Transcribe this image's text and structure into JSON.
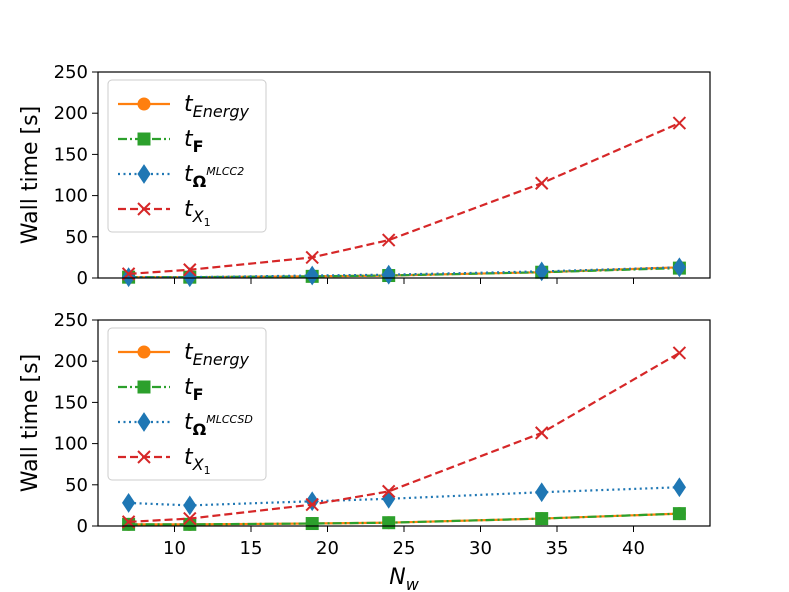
{
  "chart_data": [
    {
      "type": "line",
      "panel": "top",
      "title": "",
      "xlabel": "",
      "ylabel": "Wall time [s]",
      "x": [
        7,
        11,
        19,
        24,
        34,
        43
      ],
      "xlim": [
        5,
        45
      ],
      "ylim": [
        0,
        250
      ],
      "xticks": [
        10,
        15,
        20,
        25,
        30,
        35,
        40
      ],
      "yticks": [
        0,
        50,
        100,
        150,
        200,
        250
      ],
      "show_xtick_labels": false,
      "legend_position": "upper-left",
      "series": [
        {
          "name": "t_Energy",
          "label_base": "t",
          "label_sub": "Energy",
          "label_sup": "",
          "color": "#ff7f0e",
          "dash": "solid",
          "marker": "circle",
          "values": [
            1,
            1,
            2,
            3,
            7,
            13
          ]
        },
        {
          "name": "t_F",
          "label_base": "t",
          "label_sub": "F",
          "label_sup": "",
          "color": "#2ca02c",
          "dash": "dashdot",
          "marker": "square",
          "values": [
            1,
            1,
            2,
            3,
            7,
            12
          ]
        },
        {
          "name": "t_Omega^MLCC2",
          "label_base": "t",
          "label_sub": "Ω",
          "label_sup": "MLCC2",
          "color": "#1f77b4",
          "dash": "dotted",
          "marker": "diamond",
          "values": [
            1,
            1,
            3,
            4,
            8,
            13
          ]
        },
        {
          "name": "t_X1",
          "label_base": "t",
          "label_sub": "X",
          "label_sup": "",
          "label_subsub": "1",
          "color": "#d62728",
          "dash": "dashed",
          "marker": "x",
          "values": [
            5,
            10,
            25,
            46,
            115,
            188
          ]
        }
      ]
    },
    {
      "type": "line",
      "panel": "bottom",
      "title": "",
      "xlabel": "N",
      "xlabel_sub": "w",
      "ylabel": "Wall time [s]",
      "x": [
        7,
        11,
        19,
        24,
        34,
        43
      ],
      "xlim": [
        5,
        45
      ],
      "ylim": [
        0,
        250
      ],
      "xticks": [
        10,
        15,
        20,
        25,
        30,
        35,
        40
      ],
      "yticks": [
        0,
        50,
        100,
        150,
        200,
        250
      ],
      "show_xtick_labels": true,
      "legend_position": "upper-left",
      "series": [
        {
          "name": "t_Energy",
          "label_base": "t",
          "label_sub": "Energy",
          "label_sup": "",
          "color": "#ff7f0e",
          "dash": "solid",
          "marker": "circle",
          "values": [
            2,
            2,
            3,
            4,
            9,
            15
          ]
        },
        {
          "name": "t_F",
          "label_base": "t",
          "label_sub": "F",
          "label_sup": "",
          "color": "#2ca02c",
          "dash": "dashdot",
          "marker": "square",
          "values": [
            2,
            2,
            3,
            4,
            9,
            15
          ]
        },
        {
          "name": "t_Omega^MLCCSD",
          "label_base": "t",
          "label_sub": "Ω",
          "label_sup": "MLCCSD",
          "color": "#1f77b4",
          "dash": "dotted",
          "marker": "diamond",
          "values": [
            28,
            25,
            30,
            33,
            41,
            47
          ]
        },
        {
          "name": "t_X1",
          "label_base": "t",
          "label_sub": "X",
          "label_sup": "",
          "label_subsub": "1",
          "color": "#d62728",
          "dash": "dashed",
          "marker": "x",
          "values": [
            5,
            9,
            26,
            42,
            113,
            210
          ]
        }
      ]
    }
  ]
}
